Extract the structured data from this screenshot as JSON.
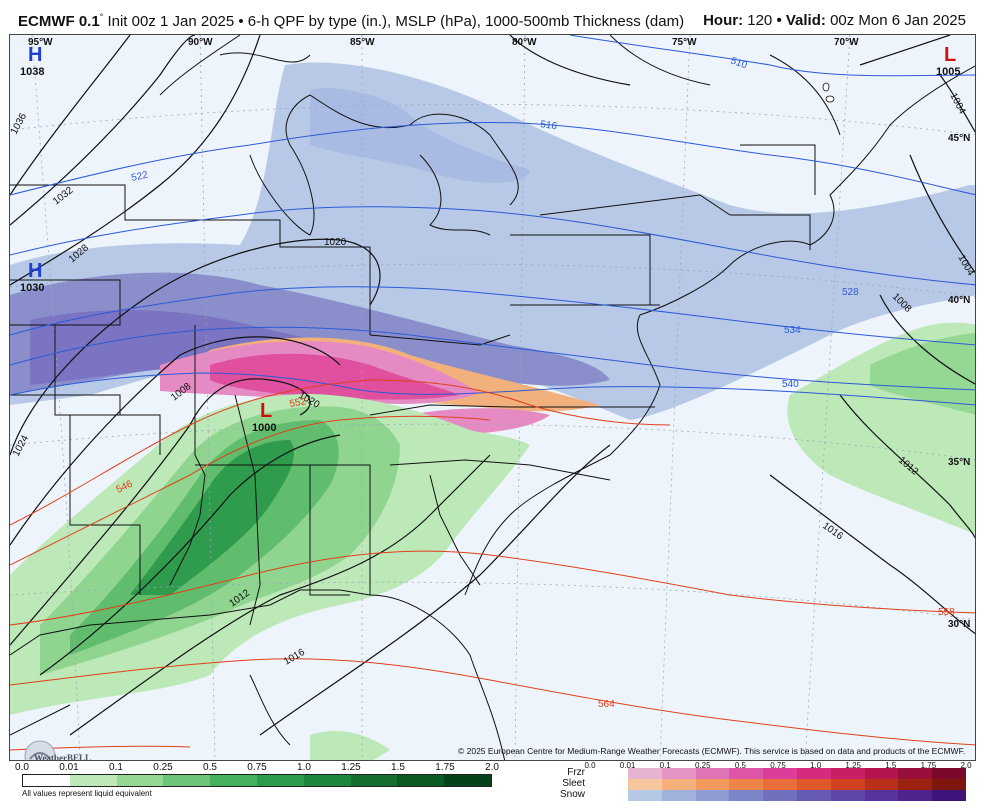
{
  "header": {
    "model": "ECMWF 0.1",
    "degree": "°",
    "init": " Init 00z 1 Jan 2025 • 6-h QPF by type (in.), MSLP (hPa), 1000-500mb Thickness (dam)",
    "hour_label": "Hour:",
    "hour": "120",
    "valid_label": "Valid:",
    "valid": "00z Mon 6 Jan 2025"
  },
  "longitudes": [
    "95°W",
    "90°W",
    "85°W",
    "80°W",
    "75°W",
    "70°W"
  ],
  "latitudes": [
    "45°N",
    "40°N",
    "35°N",
    "30°N"
  ],
  "pressure_centers": [
    {
      "type": "H",
      "value": "1038",
      "color": "#1f3fd0"
    },
    {
      "type": "H",
      "value": "1030",
      "color": "#1f3fd0"
    },
    {
      "type": "L",
      "value": "1000",
      "color": "#d01010"
    },
    {
      "type": "L",
      "value": "1005",
      "color": "#d01010"
    }
  ],
  "isobar_labels": [
    "1036",
    "1032",
    "1028",
    "1024",
    "1020",
    "1016",
    "1012",
    "1008",
    "1004",
    "1008",
    "1012",
    "1016",
    "1020",
    "1004"
  ],
  "thickness_labels": {
    "blue": [
      "510",
      "516",
      "522",
      "528",
      "534",
      "540"
    ],
    "red": [
      "546",
      "552",
      "558",
      "564",
      "570"
    ]
  },
  "copyright": "© 2025 European Centre for Medium-Range Weather Forecasts (ECMWF). This service is based on data and products of the ECMWF.",
  "logo_text": "WeatherBELL",
  "rain_legend": {
    "ticks": [
      "0.0",
      "0.01",
      "0.1",
      "0.25",
      "0.5",
      "0.75",
      "1.0",
      "1.25",
      "1.5",
      "1.75",
      "2.0"
    ],
    "colors": [
      "#ffffff",
      "#bde8b8",
      "#94d894",
      "#6cc576",
      "#45b05e",
      "#2f9b4c",
      "#1f863d",
      "#15702f",
      "#0c5a23",
      "#054219"
    ],
    "note": "All values represent liquid equivalent"
  },
  "ptype_legend": {
    "ticks": [
      "0.0",
      "0.01",
      "0.1",
      "0.25",
      "0.5",
      "0.75",
      "1.0",
      "1.25",
      "1.5",
      "1.75",
      "2.0"
    ],
    "rows": [
      {
        "name": "Frzr",
        "colors": [
          "#e6b4d0",
          "#e394c4",
          "#e074b6",
          "#de55a8",
          "#dc3d9a",
          "#d52a7e",
          "#c81e64",
          "#b4154f",
          "#9a0e3c",
          "#7c082c"
        ]
      },
      {
        "name": "Sleet",
        "colors": [
          "#f6c79c",
          "#f4b07a",
          "#f29a5d",
          "#ef8448",
          "#ea6e3a",
          "#e0562d",
          "#d04222",
          "#b8301a",
          "#9c2212",
          "#7e160c"
        ]
      },
      {
        "name": "Snow",
        "colors": [
          "#b5c8e6",
          "#a1b2dd",
          "#8e9bd3",
          "#7c85c9",
          "#7070bf",
          "#675ab4",
          "#5f46a8",
          "#57349b",
          "#4e238c",
          "#3f147a"
        ]
      }
    ]
  }
}
